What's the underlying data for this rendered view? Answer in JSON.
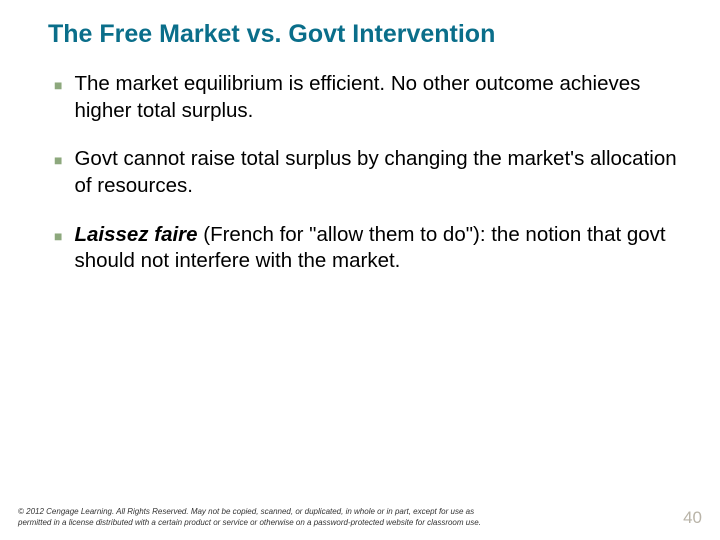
{
  "title": "The Free Market vs. Govt Intervention",
  "bullets": [
    {
      "text": "The market equilibrium is efficient.  No other outcome achieves higher total surplus."
    },
    {
      "text": "Govt cannot raise total surplus by changing the market's allocation of resources."
    },
    {
      "emphasis": "Laissez faire",
      "rest": " (French for \"allow them to do\"): the notion that govt should not interfere with the market."
    }
  ],
  "copyright_line1": "© 2012 Cengage Learning. All Rights Reserved. May not be copied, scanned, or duplicated, in whole or in part, except for use as",
  "copyright_line2": "permitted in a license distributed with a certain product or service or otherwise on a password-protected website for classroom use.",
  "page_number": "40",
  "colors": {
    "title": "#0a6e8a",
    "bullet_marker": "#8da87d",
    "text": "#000000",
    "page_number": "#b9b4a8",
    "background": "#ffffff"
  }
}
